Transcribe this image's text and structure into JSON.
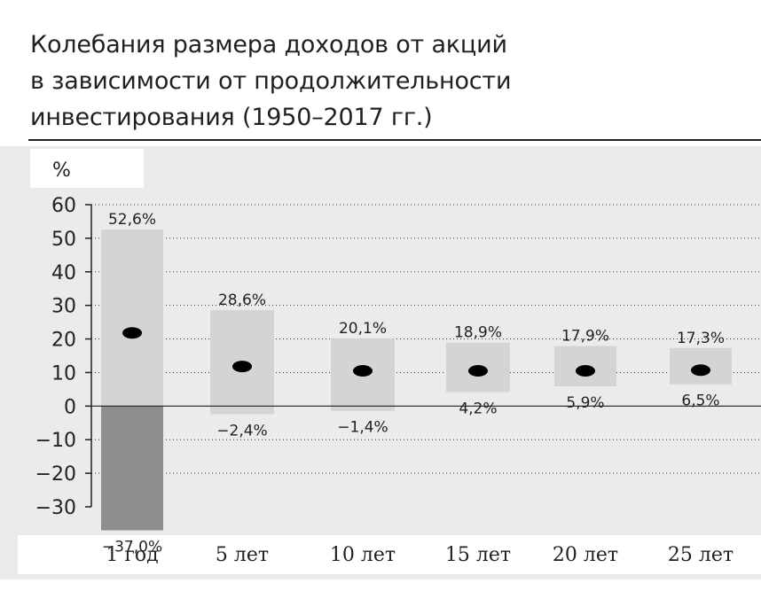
{
  "title_lines": [
    "Колебания размера доходов от акций",
    "в зависимости от продолжительности",
    "инвестирования (1950–2017 гг.)"
  ],
  "chart_data": {
    "type": "bar",
    "title": "Колебания размера доходов от акций в зависимости от продолжительности инвестирования (1950–2017 гг.)",
    "ylabel": "%",
    "ylim": [
      -30,
      60
    ],
    "yticks": [
      60,
      50,
      40,
      30,
      20,
      10,
      0,
      -10,
      -20,
      -30
    ],
    "ytick_labels": [
      "60",
      "50",
      "40",
      "30",
      "20",
      "10",
      "0",
      "−10",
      "−20",
      "−30"
    ],
    "grid": true,
    "categories": [
      "1 год",
      "5 лет",
      "10 лет",
      "15 лет",
      "20 лет",
      "25 лет"
    ],
    "max": [
      52.6,
      28.6,
      20.1,
      18.9,
      17.9,
      17.3
    ],
    "min": [
      -37.0,
      -2.4,
      -1.4,
      4.2,
      5.9,
      6.5
    ],
    "average": [
      21.8,
      11.8,
      10.5,
      10.5,
      10.5,
      10.7
    ],
    "max_labels": [
      "52,6%",
      "28,6%",
      "20,1%",
      "18,9%",
      "17,9%",
      "17,3%"
    ],
    "min_labels": [
      "−37,0%",
      "−2,4%",
      "−1,4%",
      "4,2%",
      "5,9%",
      "6,5%"
    ]
  },
  "colors": {
    "background": "#ebebeb",
    "range_bar": "#d4d4d4",
    "negative_bar": "#8e8e8e",
    "dot": "#000000",
    "axis": "#231f20",
    "grid": "#3a3a3a"
  }
}
